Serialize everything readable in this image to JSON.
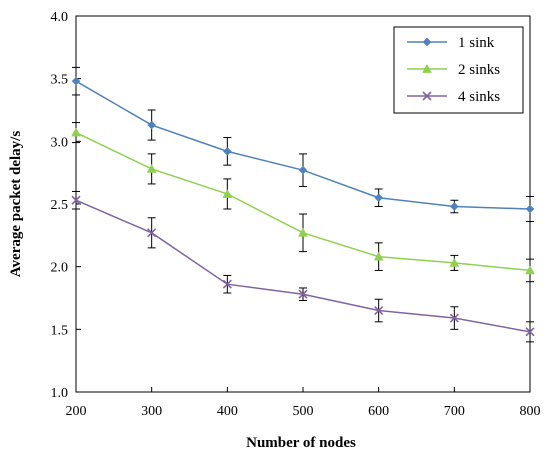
{
  "chart_data": {
    "type": "line",
    "title": "",
    "xlabel": "Number of nodes",
    "ylabel": "Average packet delay/s",
    "x": [
      200,
      300,
      400,
      500,
      600,
      700,
      800
    ],
    "xlim": [
      200,
      800
    ],
    "ylim": [
      1.0,
      4.0
    ],
    "x_ticks": [
      200,
      300,
      400,
      500,
      600,
      700,
      800
    ],
    "y_ticks": [
      1.0,
      1.5,
      2.0,
      2.5,
      3.0,
      3.5,
      4.0
    ],
    "x_tick_labels": [
      "200",
      "300",
      "400",
      "500",
      "600",
      "700",
      "800"
    ],
    "y_tick_labels": [
      "1.0",
      "1.5",
      "2.0",
      "2.5",
      "3.0",
      "3.5",
      "4.0"
    ],
    "grid": false,
    "legend_position": "top-right",
    "series": [
      {
        "name": "1 sink",
        "color": "#4f81bd",
        "marker": "diamond",
        "values": [
          3.48,
          3.13,
          2.92,
          2.77,
          2.55,
          2.48,
          2.46
        ],
        "error": [
          0.11,
          0.12,
          0.11,
          0.13,
          0.07,
          0.05,
          0.1
        ]
      },
      {
        "name": "2 sinks",
        "color": "#8fd14f",
        "marker": "triangle",
        "values": [
          3.07,
          2.78,
          2.58,
          2.27,
          2.08,
          2.03,
          1.97
        ],
        "error": [
          0.08,
          0.12,
          0.12,
          0.15,
          0.11,
          0.06,
          0.09
        ]
      },
      {
        "name": "4 sinks",
        "color": "#8064a2",
        "marker": "x",
        "values": [
          2.53,
          2.27,
          1.86,
          1.78,
          1.65,
          1.59,
          1.48
        ],
        "error": [
          0.07,
          0.12,
          0.07,
          0.05,
          0.09,
          0.09,
          0.08
        ]
      }
    ]
  }
}
